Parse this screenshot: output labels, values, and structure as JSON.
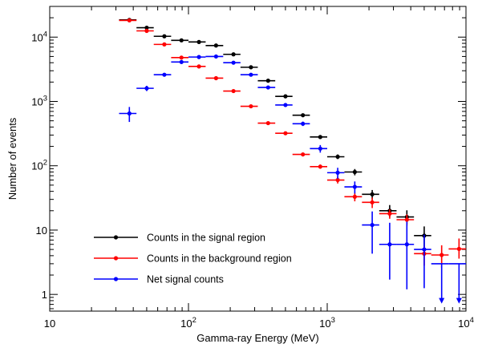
{
  "chart_data": {
    "type": "scatter",
    "xlabel": "Gamma-ray Energy (MeV)",
    "ylabel": "Number of events",
    "xscale": "log",
    "yscale": "log",
    "xlim": [
      10,
      10000
    ],
    "ylim": [
      0.55,
      30000
    ],
    "x_ticks": [
      {
        "value": 10,
        "base": "10",
        "exp": ""
      },
      {
        "value": 100,
        "base": "10",
        "exp": "2"
      },
      {
        "value": 1000,
        "base": "10",
        "exp": "3"
      },
      {
        "value": 10000,
        "base": "10",
        "exp": "4"
      }
    ],
    "y_ticks": [
      {
        "value": 1,
        "base": "1",
        "exp": ""
      },
      {
        "value": 10,
        "base": "10",
        "exp": ""
      },
      {
        "value": 100,
        "base": "10",
        "exp": "2"
      },
      {
        "value": 1000,
        "base": "10",
        "exp": "3"
      },
      {
        "value": 10000,
        "base": "10",
        "exp": "4"
      }
    ],
    "legend_position": "bottom-left",
    "grid": false,
    "series": [
      {
        "name": "Counts in the signal region",
        "color": "#000000",
        "points": [
          {
            "x": 37.5,
            "xlo": 31.6,
            "xhi": 42.2,
            "y": 18500,
            "ylo": 18500,
            "yhi": 18500
          },
          {
            "x": 50,
            "xlo": 42.2,
            "xhi": 56.2,
            "y": 14000,
            "ylo": 14000,
            "yhi": 14000
          },
          {
            "x": 67,
            "xlo": 56.2,
            "xhi": 75,
            "y": 10300,
            "ylo": 10300,
            "yhi": 10300
          },
          {
            "x": 89,
            "xlo": 75,
            "xhi": 100,
            "y": 8900,
            "ylo": 8900,
            "yhi": 8900
          },
          {
            "x": 119,
            "xlo": 100,
            "xhi": 133,
            "y": 8400,
            "ylo": 8400,
            "yhi": 8400
          },
          {
            "x": 158,
            "xlo": 133,
            "xhi": 178,
            "y": 7400,
            "ylo": 7400,
            "yhi": 7400
          },
          {
            "x": 211,
            "xlo": 178,
            "xhi": 237,
            "y": 5400,
            "ylo": 5400,
            "yhi": 5400
          },
          {
            "x": 282,
            "xlo": 237,
            "xhi": 316,
            "y": 3400,
            "ylo": 3400,
            "yhi": 3400
          },
          {
            "x": 375,
            "xlo": 316,
            "xhi": 422,
            "y": 2100,
            "ylo": 2100,
            "yhi": 2100
          },
          {
            "x": 500,
            "xlo": 422,
            "xhi": 562,
            "y": 1200,
            "ylo": 1200,
            "yhi": 1200
          },
          {
            "x": 668,
            "xlo": 562,
            "xhi": 750,
            "y": 610,
            "ylo": 610,
            "yhi": 610
          },
          {
            "x": 891,
            "xlo": 750,
            "xhi": 1000,
            "y": 280,
            "ylo": 265,
            "yhi": 295
          },
          {
            "x": 1190,
            "xlo": 1000,
            "xhi": 1330,
            "y": 138,
            "ylo": 127,
            "yhi": 150
          },
          {
            "x": 1580,
            "xlo": 1330,
            "xhi": 1780,
            "y": 80,
            "ylo": 71,
            "yhi": 89
          },
          {
            "x": 2110,
            "xlo": 1780,
            "xhi": 2370,
            "y": 36,
            "ylo": 30,
            "yhi": 42
          },
          {
            "x": 2820,
            "xlo": 2370,
            "xhi": 3160,
            "y": 20,
            "ylo": 16,
            "yhi": 24.5
          },
          {
            "x": 3750,
            "xlo": 3160,
            "xhi": 4220,
            "y": 16,
            "ylo": 12.2,
            "yhi": 20.3
          },
          {
            "x": 5000,
            "xlo": 4220,
            "xhi": 5620,
            "y": 8.2,
            "ylo": 5.5,
            "yhi": 11.4
          }
        ]
      },
      {
        "name": "Counts in the background region",
        "color": "#ff0000",
        "points": [
          {
            "x": 37.5,
            "xlo": 31.6,
            "xhi": 42.2,
            "y": 18200,
            "ylo": 18200,
            "yhi": 18200
          },
          {
            "x": 50,
            "xlo": 42.2,
            "xhi": 56.2,
            "y": 12500,
            "ylo": 12500,
            "yhi": 12500
          },
          {
            "x": 67,
            "xlo": 56.2,
            "xhi": 75,
            "y": 7700,
            "ylo": 7700,
            "yhi": 7700
          },
          {
            "x": 89,
            "xlo": 75,
            "xhi": 100,
            "y": 4800,
            "ylo": 4800,
            "yhi": 4800
          },
          {
            "x": 119,
            "xlo": 100,
            "xhi": 133,
            "y": 3500,
            "ylo": 3500,
            "yhi": 3500
          },
          {
            "x": 158,
            "xlo": 133,
            "xhi": 178,
            "y": 2300,
            "ylo": 2300,
            "yhi": 2300
          },
          {
            "x": 211,
            "xlo": 178,
            "xhi": 237,
            "y": 1450,
            "ylo": 1450,
            "yhi": 1450
          },
          {
            "x": 282,
            "xlo": 237,
            "xhi": 316,
            "y": 840,
            "ylo": 840,
            "yhi": 840
          },
          {
            "x": 375,
            "xlo": 316,
            "xhi": 422,
            "y": 460,
            "ylo": 460,
            "yhi": 460
          },
          {
            "x": 500,
            "xlo": 422,
            "xhi": 562,
            "y": 320,
            "ylo": 320,
            "yhi": 320
          },
          {
            "x": 668,
            "xlo": 562,
            "xhi": 750,
            "y": 150,
            "ylo": 150,
            "yhi": 150
          },
          {
            "x": 891,
            "xlo": 750,
            "xhi": 1000,
            "y": 97,
            "ylo": 90,
            "yhi": 104
          },
          {
            "x": 1190,
            "xlo": 1000,
            "xhi": 1330,
            "y": 60,
            "ylo": 53,
            "yhi": 67
          },
          {
            "x": 1580,
            "xlo": 1330,
            "xhi": 1780,
            "y": 33,
            "ylo": 28,
            "yhi": 38
          },
          {
            "x": 2110,
            "xlo": 1780,
            "xhi": 2370,
            "y": 27,
            "ylo": 22,
            "yhi": 32
          },
          {
            "x": 2820,
            "xlo": 2370,
            "xhi": 3160,
            "y": 18,
            "ylo": 15,
            "yhi": 21
          },
          {
            "x": 3750,
            "xlo": 3160,
            "xhi": 4220,
            "y": 14.5,
            "ylo": 11.5,
            "yhi": 17.5
          },
          {
            "x": 5000,
            "xlo": 4220,
            "xhi": 5620,
            "y": 4.3,
            "ylo": 2.8,
            "yhi": 5.6
          },
          {
            "x": 6680,
            "xlo": 5620,
            "xhi": 7500,
            "y": 4.1,
            "ylo": 2.6,
            "yhi": 5.8
          },
          {
            "x": 8910,
            "xlo": 7500,
            "xhi": 10000,
            "y": 5.1,
            "ylo": 3.6,
            "yhi": 7.4
          }
        ]
      },
      {
        "name": "Net signal counts",
        "color": "#0000ff",
        "points": [
          {
            "x": 37.5,
            "xlo": 31.6,
            "xhi": 42.2,
            "y": 650,
            "ylo": 480,
            "yhi": 820
          },
          {
            "x": 50,
            "xlo": 42.2,
            "xhi": 56.2,
            "y": 1600,
            "ylo": 1450,
            "yhi": 1750
          },
          {
            "x": 67,
            "xlo": 56.2,
            "xhi": 75,
            "y": 2600,
            "ylo": 2450,
            "yhi": 2750
          },
          {
            "x": 89,
            "xlo": 75,
            "xhi": 100,
            "y": 4100,
            "ylo": 3900,
            "yhi": 4300
          },
          {
            "x": 119,
            "xlo": 100,
            "xhi": 133,
            "y": 4900,
            "ylo": 4700,
            "yhi": 5100
          },
          {
            "x": 158,
            "xlo": 133,
            "xhi": 178,
            "y": 5000,
            "ylo": 4800,
            "yhi": 5200
          },
          {
            "x": 211,
            "xlo": 178,
            "xhi": 237,
            "y": 4000,
            "ylo": 3850,
            "yhi": 4150
          },
          {
            "x": 282,
            "xlo": 237,
            "xhi": 316,
            "y": 2600,
            "ylo": 2480,
            "yhi": 2720
          },
          {
            "x": 375,
            "xlo": 316,
            "xhi": 422,
            "y": 1650,
            "ylo": 1560,
            "yhi": 1740
          },
          {
            "x": 500,
            "xlo": 422,
            "xhi": 562,
            "y": 880,
            "ylo": 820,
            "yhi": 940
          },
          {
            "x": 668,
            "xlo": 562,
            "xhi": 750,
            "y": 450,
            "ylo": 415,
            "yhi": 485
          },
          {
            "x": 891,
            "xlo": 750,
            "xhi": 1000,
            "y": 185,
            "ylo": 160,
            "yhi": 210
          },
          {
            "x": 1190,
            "xlo": 1000,
            "xhi": 1330,
            "y": 78,
            "ylo": 63,
            "yhi": 93
          },
          {
            "x": 1580,
            "xlo": 1330,
            "xhi": 1780,
            "y": 47,
            "ylo": 37,
            "yhi": 57
          },
          {
            "x": 2110,
            "xlo": 1780,
            "xhi": 2370,
            "y": 12,
            "ylo": 4.3,
            "yhi": 19.5
          },
          {
            "x": 2820,
            "xlo": 2370,
            "xhi": 3160,
            "y": 6,
            "ylo": 1.7,
            "yhi": 13
          },
          {
            "x": 3750,
            "xlo": 3160,
            "xhi": 4220,
            "y": 6,
            "ylo": 1.2,
            "yhi": 13.5
          },
          {
            "x": 5000,
            "xlo": 4220,
            "xhi": 5620,
            "y": 5,
            "ylo": 1.25,
            "yhi": 8.5
          },
          {
            "x": 6680,
            "xlo": 5620,
            "xhi": 7500,
            "y": 3,
            "ylo": 0.72,
            "yhi": 3,
            "upper_limit": true
          },
          {
            "x": 8910,
            "xlo": 7500,
            "xhi": 10000,
            "y": 3,
            "ylo": 0.72,
            "yhi": 3,
            "upper_limit": true
          }
        ]
      }
    ]
  }
}
